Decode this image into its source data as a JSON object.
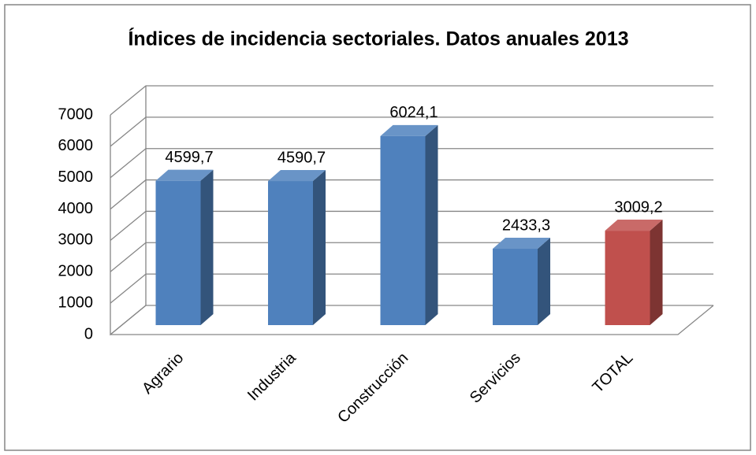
{
  "chart_data": {
    "type": "bar3d",
    "title": "Índices de incidencia sectoriales. Datos anuales 2013",
    "categories": [
      "Agrario",
      "Industria",
      "Construcción",
      "Servicios",
      "TOTAL"
    ],
    "values": [
      4599.7,
      4590.7,
      6024.1,
      2433.3,
      3009.2
    ],
    "value_labels": [
      "4599,7",
      "4590,7",
      "6024,1",
      "2433,3",
      "3009,2"
    ],
    "colors": [
      "#4f81bd",
      "#4f81bd",
      "#4f81bd",
      "#4f81bd",
      "#c0504d"
    ],
    "ylim": [
      0,
      7000
    ],
    "yticks": [
      0,
      1000,
      2000,
      3000,
      4000,
      5000,
      6000,
      7000
    ],
    "grid": true
  }
}
